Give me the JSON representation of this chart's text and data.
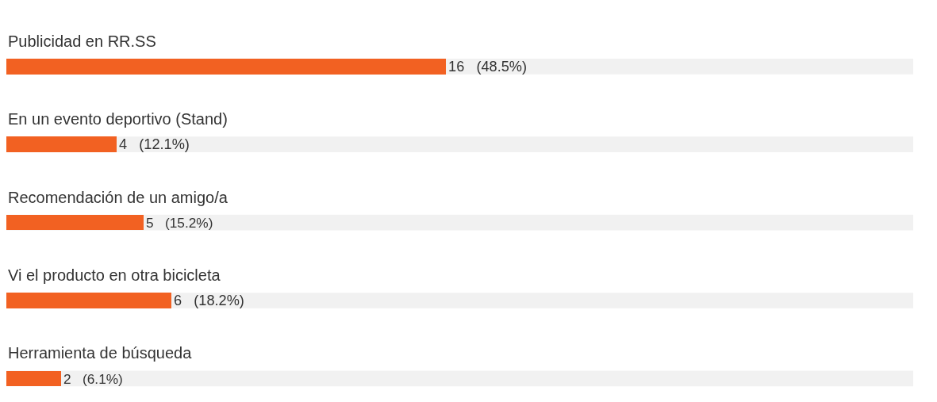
{
  "chart_data": {
    "type": "bar",
    "orientation": "horizontal",
    "categories": [
      "Publicidad en RR.SS",
      "En un evento deportivo (Stand)",
      "Recomendación de un amigo/a",
      "Vi el producto en otra bicicleta",
      "Herramienta de búsqueda"
    ],
    "values": [
      16,
      4,
      5,
      6,
      2
    ],
    "value_labels": [
      "16   (48.5%)",
      "4   (12.1%)",
      "5   (15.2%)",
      "6   (18.2%)",
      "2   (6.1%)"
    ],
    "color": "#f26122",
    "tick_labels": false,
    "grid": false,
    "legend": false
  }
}
